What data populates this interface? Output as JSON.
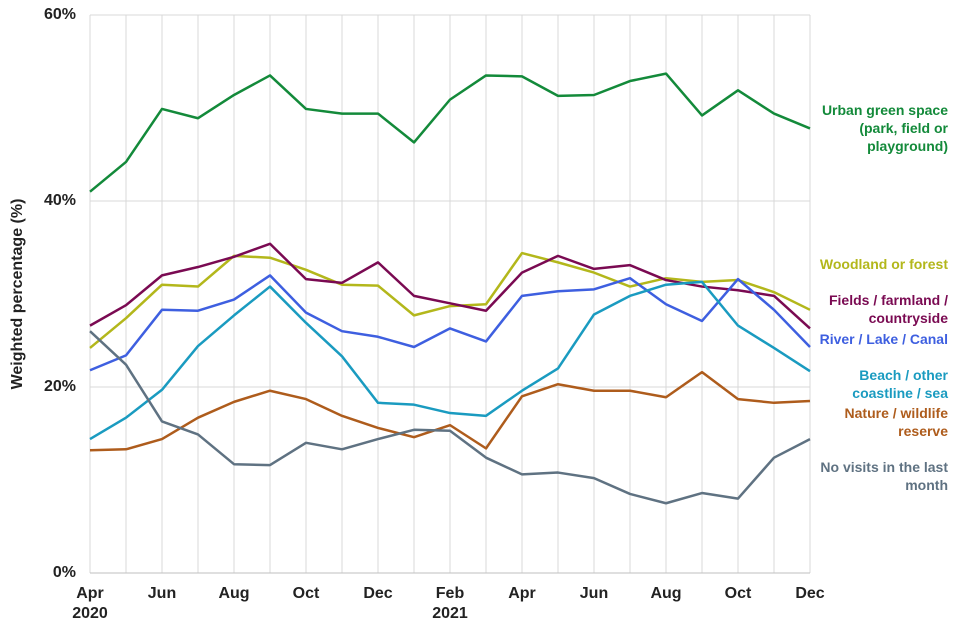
{
  "chart_data": {
    "type": "line",
    "y_label": "Weighted percentage (%)",
    "categories": [
      "Apr 2020",
      null,
      "Jun",
      null,
      "Aug",
      null,
      "Oct",
      null,
      "Dec",
      null,
      "Feb 2021",
      null,
      "Apr",
      null,
      "Jun",
      null,
      "Aug",
      null,
      "Oct",
      null,
      "Dec"
    ],
    "ylim": [
      0,
      60
    ],
    "yticks": [
      {
        "value": 0,
        "label": "0%"
      },
      {
        "value": 20,
        "label": "20%"
      },
      {
        "value": 40,
        "label": "40%"
      },
      {
        "value": 60,
        "label": "60%"
      }
    ],
    "grid": true,
    "series": [
      {
        "name": "Urban green space (park, field or playground)",
        "color": "#138a3a",
        "values": [
          41.0,
          44.2,
          49.9,
          48.9,
          51.4,
          53.5,
          49.9,
          49.4,
          49.4,
          46.3,
          50.9,
          53.5,
          53.4,
          51.3,
          51.4,
          52.9,
          53.7,
          49.2,
          51.9,
          49.4,
          47.8
        ]
      },
      {
        "name": "Woodland or forest",
        "color": "#b3b71b",
        "values": [
          24.2,
          27.4,
          31.0,
          30.8,
          34.1,
          33.9,
          32.6,
          31.0,
          30.9,
          27.7,
          28.7,
          28.9,
          34.4,
          33.4,
          32.3,
          30.8,
          31.7,
          31.3,
          31.5,
          30.2,
          28.3
        ]
      },
      {
        "name": "Fields / farmland / countryside",
        "color": "#7a0a52",
        "values": [
          26.6,
          28.8,
          32.0,
          32.9,
          34.0,
          35.4,
          31.6,
          31.2,
          33.4,
          29.8,
          29.0,
          28.2,
          32.3,
          34.1,
          32.7,
          33.1,
          31.5,
          30.8,
          30.4,
          29.8,
          26.3
        ]
      },
      {
        "name": "River / Lake / Canal",
        "color": "#3e5fe0",
        "values": [
          21.8,
          23.4,
          28.3,
          28.2,
          29.4,
          32.0,
          28.0,
          26.0,
          25.4,
          24.3,
          26.3,
          24.9,
          29.8,
          30.3,
          30.5,
          31.7,
          28.9,
          27.1,
          31.6,
          28.3,
          24.3
        ]
      },
      {
        "name": "Beach / other coastline / sea",
        "color": "#1a9bc0",
        "values": [
          14.4,
          16.7,
          19.7,
          24.4,
          27.7,
          30.8,
          26.9,
          23.3,
          18.3,
          18.1,
          17.2,
          16.9,
          19.6,
          22.0,
          27.8,
          29.8,
          31.0,
          31.3,
          26.6,
          24.2,
          21.7
        ]
      },
      {
        "name": "Nature / wildlife reserve",
        "color": "#ae5c1c",
        "values": [
          13.2,
          13.3,
          14.4,
          16.7,
          18.4,
          19.6,
          18.7,
          16.9,
          15.6,
          14.6,
          15.9,
          13.4,
          19.0,
          20.3,
          19.6,
          19.6,
          18.9,
          21.6,
          18.7,
          18.3,
          18.5
        ]
      },
      {
        "name": "No visits in the last month",
        "color": "#5f7282",
        "values": [
          26.0,
          22.4,
          16.3,
          14.9,
          11.7,
          11.6,
          14.0,
          13.3,
          14.4,
          15.4,
          15.3,
          12.4,
          10.6,
          10.8,
          10.2,
          8.5,
          7.5,
          8.6,
          8.0,
          12.4,
          14.4
        ]
      }
    ]
  }
}
